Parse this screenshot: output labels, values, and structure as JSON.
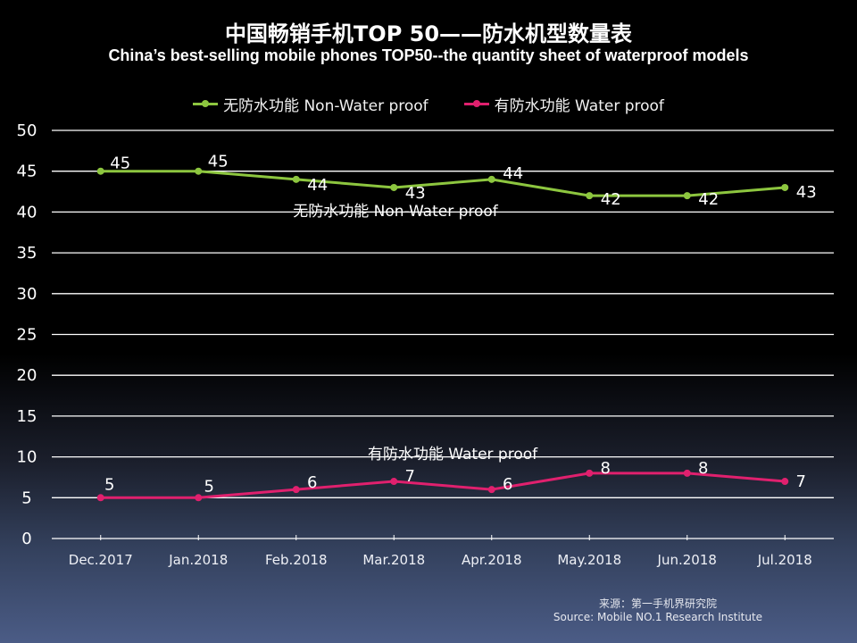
{
  "title_cn": "中国畅销手机TOP 50——防水机型数量表",
  "title_en": "China’s best-selling mobile phones TOP50--the quantity sheet of waterproof models",
  "source_cn": "来源：第一手机界研究院",
  "source_en": "Source: Mobile NO.1 Research Institute",
  "chart_data": {
    "type": "line",
    "title": "中国畅销手机TOP 50——防水机型数量表",
    "subtitle": "China’s best-selling mobile phones TOP50--the quantity sheet of waterproof models",
    "xlabel": "",
    "ylabel": "",
    "categories": [
      "Dec.2017",
      "Jan.2018",
      "Feb.2018",
      "Mar.2018",
      "Apr.2018",
      "May.2018",
      "Jun.2018",
      "Jul.2018"
    ],
    "ylim": [
      0,
      50
    ],
    "yticks": [
      "0",
      "5",
      "10",
      "15",
      "20",
      "25",
      "30",
      "35",
      "40",
      "45",
      "50"
    ],
    "grid": true,
    "legend_position": "top",
    "series": [
      {
        "name": "无防水功能 Non-Water proof",
        "inline_label": "无防水功能   Non-Water proof",
        "color": "#8dc63f",
        "values": [
          45,
          45,
          44,
          43,
          44,
          42,
          42,
          43
        ]
      },
      {
        "name": "有防水功能 Water proof",
        "inline_label": "有防水功能   Water proof",
        "color": "#e0206e",
        "values": [
          5,
          5,
          6,
          7,
          6,
          8,
          8,
          7
        ]
      }
    ]
  }
}
